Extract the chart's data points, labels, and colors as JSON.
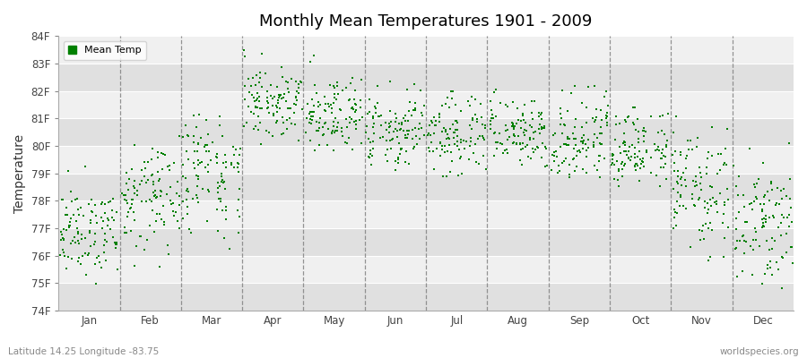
{
  "title": "Monthly Mean Temperatures 1901 - 2009",
  "ylabel": "Temperature",
  "lat_lon_label": "Latitude 14.25 Longitude -83.75",
  "watermark": "worldspecies.org",
  "legend_label": "Mean Temp",
  "dot_color": "#008000",
  "dot_size": 3,
  "ylim": [
    74,
    84
  ],
  "yticks": [
    74,
    75,
    76,
    77,
    78,
    79,
    80,
    81,
    82,
    83,
    84
  ],
  "ytick_labels": [
    "74F",
    "75F",
    "76F",
    "77F",
    "78F",
    "79F",
    "80F",
    "81F",
    "82F",
    "83F",
    "84F"
  ],
  "fig_bg_color": "#FFFFFF",
  "band_light": "#F0F0F0",
  "band_dark": "#E0E0E0",
  "months": [
    "Jan",
    "Feb",
    "Mar",
    "Apr",
    "May",
    "Jun",
    "Jul",
    "Aug",
    "Sep",
    "Oct",
    "Nov",
    "Dec"
  ],
  "num_years": 109,
  "seed": 42,
  "monthly_means": [
    76.8,
    78.2,
    79.2,
    81.5,
    81.2,
    80.5,
    80.3,
    80.5,
    80.2,
    79.8,
    78.5,
    77.2
  ],
  "monthly_stds": [
    0.9,
    1.0,
    1.1,
    0.8,
    0.8,
    0.7,
    0.7,
    0.7,
    0.8,
    0.8,
    1.0,
    1.1
  ],
  "monthly_mins": [
    74.5,
    74.8,
    75.8,
    80.0,
    79.8,
    79.0,
    78.8,
    79.0,
    78.8,
    78.5,
    75.0,
    74.5
  ],
  "monthly_maxs": [
    79.5,
    80.5,
    81.5,
    83.5,
    83.5,
    82.5,
    82.0,
    82.5,
    82.5,
    81.8,
    81.5,
    80.5
  ]
}
